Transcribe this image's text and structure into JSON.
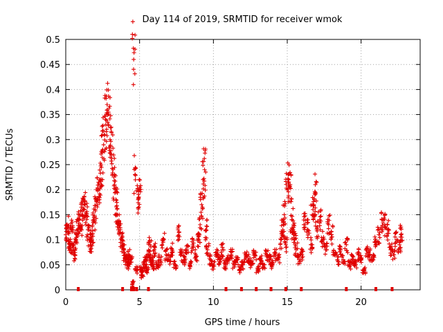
{
  "chart_data": {
    "type": "scatter",
    "title": "Day 114 of 2019, SRMTID for receiver wmok",
    "xlabel": "GPS time / hours",
    "ylabel": "SRMTID / TECUs",
    "xlim": [
      0,
      24
    ],
    "ylim": [
      0,
      0.5
    ],
    "xticks": [
      0,
      5,
      10,
      15,
      20
    ],
    "yticks": [
      0,
      0.05,
      0.1,
      0.15,
      0.2,
      0.25,
      0.3,
      0.35,
      0.4,
      0.45,
      0.5
    ],
    "xtick_labels": [
      "0",
      "5",
      "10",
      "15",
      "20"
    ],
    "ytick_labels": [
      "0",
      "0.05",
      "0.1",
      "0.15",
      "0.2",
      "0.25",
      "0.3",
      "0.35",
      "0.4",
      "0.45",
      "0.5"
    ],
    "grid": true,
    "marker": "+",
    "color": "#e00000",
    "series": [
      {
        "name": "SRMTID",
        "x": [
          0.0,
          0.1,
          0.2,
          0.3,
          0.4,
          0.5,
          0.6,
          0.7,
          0.8,
          0.9,
          1.0,
          1.1,
          1.2,
          1.3,
          1.4,
          1.5,
          1.6,
          1.7,
          1.8,
          1.9,
          2.0,
          2.1,
          2.2,
          2.3,
          2.4,
          2.5,
          2.6,
          2.7,
          2.8,
          2.9,
          3.0,
          3.1,
          3.2,
          3.3,
          3.4,
          3.5,
          3.6,
          3.7,
          3.8,
          3.9,
          4.0,
          4.1,
          4.2,
          4.3,
          4.4,
          4.5,
          4.6,
          4.7,
          4.8,
          4.9,
          5.0,
          5.1,
          5.2,
          5.3,
          5.4,
          5.5,
          5.6,
          5.7,
          5.8,
          5.9,
          6.0,
          6.2,
          6.4,
          6.6,
          6.8,
          7.0,
          7.2,
          7.4,
          7.6,
          7.8,
          8.0,
          8.2,
          8.4,
          8.6,
          8.8,
          9.0,
          9.1,
          9.2,
          9.3,
          9.4,
          9.5,
          9.6,
          9.8,
          10.0,
          10.2,
          10.4,
          10.6,
          10.8,
          11.0,
          11.2,
          11.4,
          11.6,
          11.8,
          12.0,
          12.2,
          12.4,
          12.6,
          12.8,
          13.0,
          13.2,
          13.4,
          13.6,
          13.8,
          14.0,
          14.2,
          14.4,
          14.6,
          14.7,
          14.8,
          14.9,
          15.0,
          15.1,
          15.2,
          15.3,
          15.4,
          15.5,
          15.6,
          15.8,
          16.0,
          16.2,
          16.4,
          16.6,
          16.7,
          16.8,
          16.9,
          17.0,
          17.2,
          17.4,
          17.6,
          17.8,
          18.0,
          18.2,
          18.4,
          18.6,
          18.8,
          19.0,
          19.2,
          19.4,
          19.6,
          19.8,
          20.0,
          20.2,
          20.4,
          20.6,
          20.8,
          21.0,
          21.2,
          21.4,
          21.6,
          21.8,
          22.0,
          22.2,
          22.4,
          22.6,
          22.7
        ],
        "y": [
          0.11,
          0.13,
          0.1,
          0.09,
          0.12,
          0.08,
          0.07,
          0.1,
          0.12,
          0.14,
          0.13,
          0.15,
          0.16,
          0.17,
          0.15,
          0.12,
          0.1,
          0.09,
          0.11,
          0.14,
          0.16,
          0.18,
          0.2,
          0.22,
          0.25,
          0.28,
          0.31,
          0.34,
          0.37,
          0.33,
          0.3,
          0.27,
          0.24,
          0.21,
          0.18,
          0.15,
          0.13,
          0.12,
          0.1,
          0.09,
          0.07,
          0.06,
          0.05,
          0.07,
          0.06,
          0.01,
          0.46,
          0.23,
          0.04,
          0.18,
          0.2,
          0.04,
          0.03,
          0.05,
          0.06,
          0.04,
          0.07,
          0.09,
          0.06,
          0.05,
          0.08,
          0.05,
          0.06,
          0.1,
          0.07,
          0.06,
          0.08,
          0.05,
          0.12,
          0.07,
          0.06,
          0.08,
          0.05,
          0.09,
          0.07,
          0.1,
          0.13,
          0.17,
          0.22,
          0.24,
          0.12,
          0.08,
          0.06,
          0.05,
          0.07,
          0.06,
          0.08,
          0.05,
          0.06,
          0.07,
          0.05,
          0.06,
          0.04,
          0.05,
          0.07,
          0.06,
          0.05,
          0.07,
          0.04,
          0.06,
          0.05,
          0.07,
          0.06,
          0.05,
          0.07,
          0.06,
          0.1,
          0.12,
          0.15,
          0.09,
          0.2,
          0.22,
          0.21,
          0.14,
          0.12,
          0.1,
          0.08,
          0.06,
          0.07,
          0.13,
          0.12,
          0.09,
          0.15,
          0.17,
          0.21,
          0.12,
          0.14,
          0.1,
          0.08,
          0.13,
          0.11,
          0.07,
          0.06,
          0.08,
          0.06,
          0.09,
          0.05,
          0.06,
          0.05,
          0.07,
          0.06,
          0.04,
          0.08,
          0.07,
          0.06,
          0.09,
          0.11,
          0.14,
          0.13,
          0.12,
          0.08,
          0.07,
          0.1,
          0.09,
          0.11
        ],
        "events_at_zero": [
          0.85,
          3.85,
          4.45,
          4.6,
          4.8,
          5.6,
          10.85,
          11.9,
          12.9,
          13.9,
          14.9,
          15.95,
          19.0,
          21.0,
          22.1
        ]
      }
    ]
  }
}
